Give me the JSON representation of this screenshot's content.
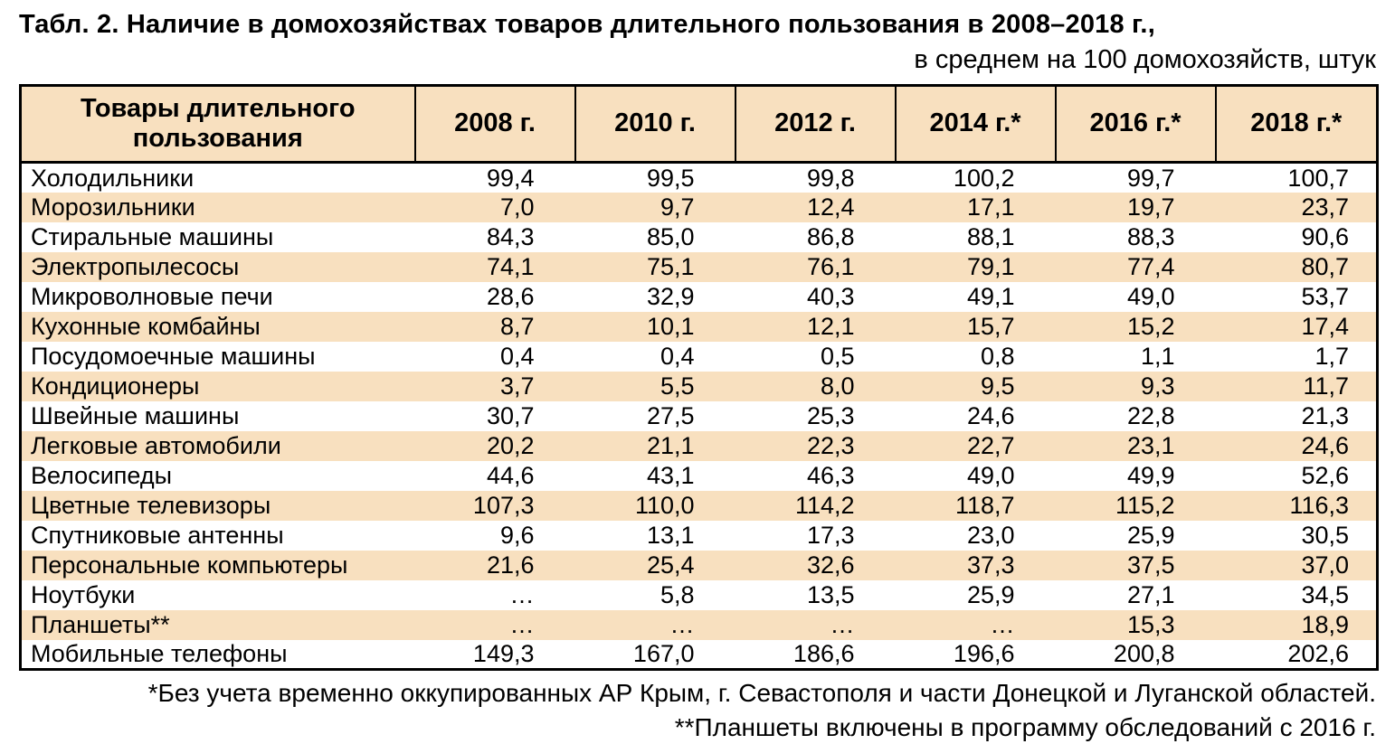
{
  "title": "Табл. 2. Наличие в домохозяйствах товаров длительного пользования в 2008–2018 г.,",
  "subtitle": "в среднем на 100 домохозяйств, штук",
  "table": {
    "header": [
      "Товары длительного пользования",
      "2008 г.",
      "2010 г.",
      "2012 г.",
      "2014 г.*",
      "2016 г.*",
      "2018 г.*"
    ],
    "rows": [
      {
        "name": "Холодильники",
        "values": [
          "99,4",
          "99,5",
          "99,8",
          "100,2",
          "99,7",
          "100,7"
        ]
      },
      {
        "name": "Морозильники",
        "values": [
          "7,0",
          "9,7",
          "12,4",
          "17,1",
          "19,7",
          "23,7"
        ]
      },
      {
        "name": "Стиральные машины",
        "values": [
          "84,3",
          "85,0",
          "86,8",
          "88,1",
          "88,3",
          "90,6"
        ]
      },
      {
        "name": "Электропылесосы",
        "values": [
          "74,1",
          "75,1",
          "76,1",
          "79,1",
          "77,4",
          "80,7"
        ]
      },
      {
        "name": "Микроволновые печи",
        "values": [
          "28,6",
          "32,9",
          "40,3",
          "49,1",
          "49,0",
          "53,7"
        ]
      },
      {
        "name": "Кухонные комбайны",
        "values": [
          "8,7",
          "10,1",
          "12,1",
          "15,7",
          "15,2",
          "17,4"
        ]
      },
      {
        "name": "Посудомоечные машины",
        "values": [
          "0,4",
          "0,4",
          "0,5",
          "0,8",
          "1,1",
          "1,7"
        ]
      },
      {
        "name": "Кондиционеры",
        "values": [
          "3,7",
          "5,5",
          "8,0",
          "9,5",
          "9,3",
          "11,7"
        ]
      },
      {
        "name": "Швейные машины",
        "values": [
          "30,7",
          "27,5",
          "25,3",
          "24,6",
          "22,8",
          "21,3"
        ]
      },
      {
        "name": "Легковые автомобили",
        "values": [
          "20,2",
          "21,1",
          "22,3",
          "22,7",
          "23,1",
          "24,6"
        ]
      },
      {
        "name": "Велосипеды",
        "values": [
          "44,6",
          "43,1",
          "46,3",
          "49,0",
          "49,9",
          "52,6"
        ]
      },
      {
        "name": "Цветные телевизоры",
        "values": [
          "107,3",
          "110,0",
          "114,2",
          "118,7",
          "115,2",
          "116,3"
        ]
      },
      {
        "name": "Спутниковые антенны",
        "values": [
          "9,6",
          "13,1",
          "17,3",
          "23,0",
          "25,9",
          "30,5"
        ]
      },
      {
        "name": "Персональные компьютеры",
        "values": [
          "21,6",
          "25,4",
          "32,6",
          "37,3",
          "37,5",
          "37,0"
        ]
      },
      {
        "name": "Ноутбуки",
        "values": [
          "…",
          "5,8",
          "13,5",
          "25,9",
          "27,1",
          "34,5"
        ]
      },
      {
        "name": "Планшеты**",
        "values": [
          "…",
          "…",
          "…",
          "…",
          "15,3",
          "18,9"
        ]
      },
      {
        "name": "Мобильные телефоны",
        "values": [
          "149,3",
          "167,0",
          "186,6",
          "196,6",
          "200,8",
          "202,6"
        ]
      }
    ]
  },
  "footnotes": [
    "*Без учета временно оккупированных АР Крым, г. Севастополя и части Донецкой и Луганской областей.",
    "**Планшеты включены в программу обследований с 2016 г."
  ],
  "colors": {
    "stripe": "#f8e0bf",
    "border": "#000000",
    "text": "#000000",
    "background": "#ffffff"
  }
}
